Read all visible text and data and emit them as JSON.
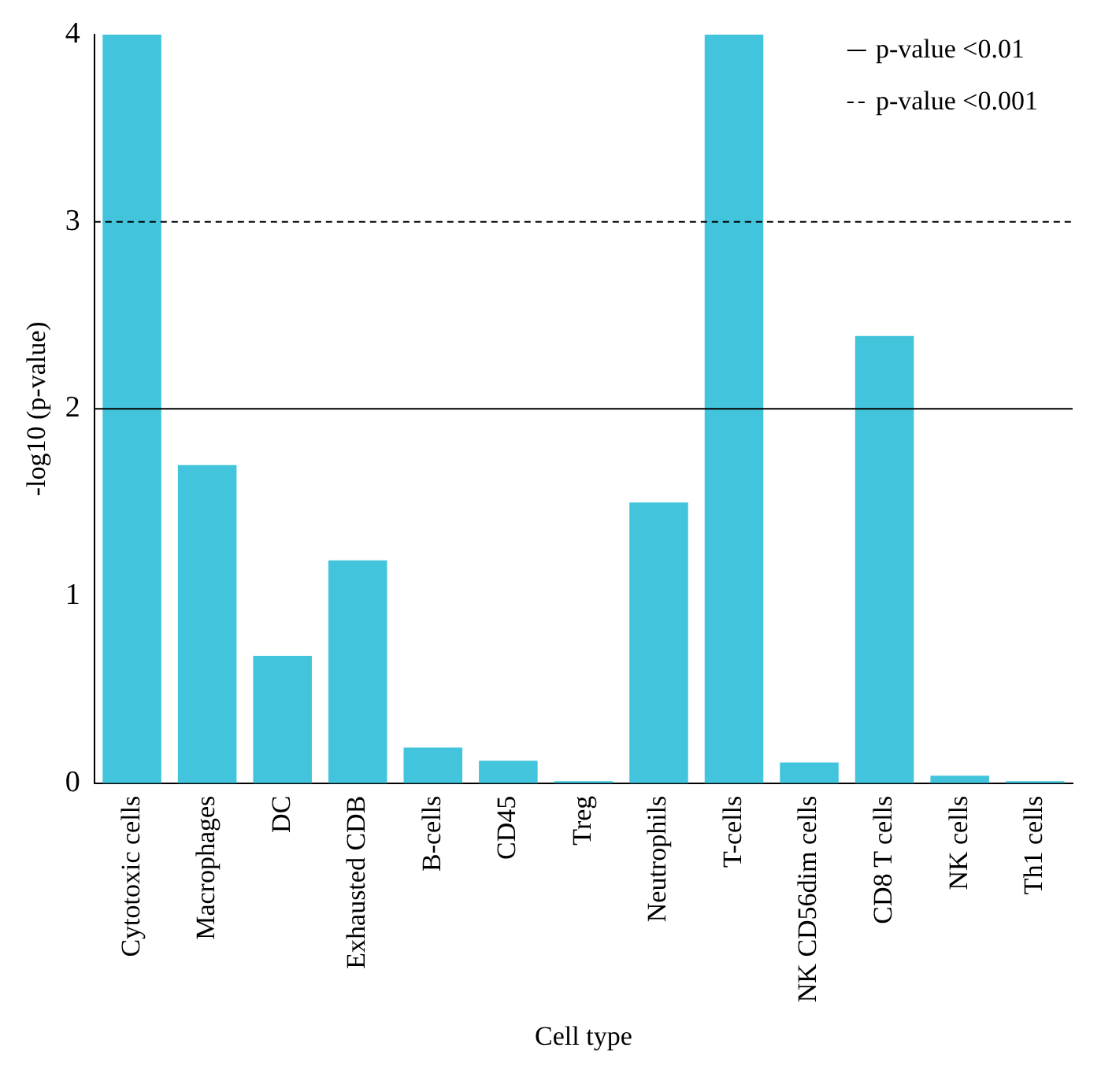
{
  "chart_data": {
    "type": "bar",
    "xlabel": "Cell type",
    "ylabel": "-log10 (p-value)",
    "categories": [
      "Cytotoxic cells",
      "Macrophages",
      "DC",
      "Exhausted CDB",
      "B-cells",
      "CD45",
      "Treg",
      "Neutrophils",
      "T-cells",
      "NK CD56dim cells",
      "CD8 T cells",
      "NK cells",
      "Th1 cells"
    ],
    "values": [
      4,
      1.7,
      0.68,
      1.19,
      0.19,
      0.12,
      0.01,
      1.5,
      4,
      0.11,
      2.39,
      0.04,
      0.01
    ],
    "color": "#42c5dc",
    "ylim": [
      0,
      4
    ],
    "yticks": [
      0,
      1,
      2,
      3,
      4
    ],
    "grid": false,
    "legend": "top right",
    "ref_lines": [
      {
        "axis": "y",
        "value": 2,
        "label": "p-value <0.01",
        "color": "#000000",
        "line_style": "solid"
      },
      {
        "axis": "y",
        "value": 3,
        "label": "p-value <0.001",
        "color": "#000000",
        "line_style": "dashed"
      }
    ]
  }
}
